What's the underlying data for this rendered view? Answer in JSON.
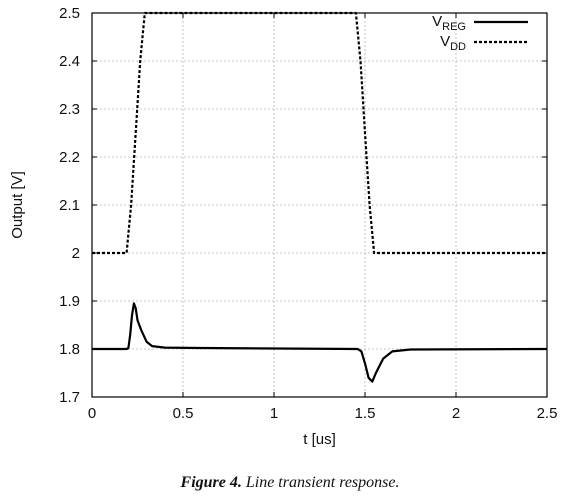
{
  "chart_data": {
    "type": "line",
    "xlabel": "t [us]",
    "ylabel": "Output [V]",
    "xlim": [
      0,
      2.5
    ],
    "ylim": [
      1.7,
      2.5
    ],
    "x_ticks": [
      "0",
      "0.5",
      "1",
      "1.5",
      "2",
      "2.5"
    ],
    "y_ticks": [
      "1.7",
      "1.8",
      "1.9",
      "2",
      "2.1",
      "2.2",
      "2.3",
      "2.4",
      "2.5"
    ],
    "x_tick_values": [
      0,
      0.5,
      1,
      1.5,
      2,
      2.5
    ],
    "y_tick_values": [
      1.7,
      1.8,
      1.9,
      2.0,
      2.1,
      2.2,
      2.3,
      2.4,
      2.5
    ],
    "grid": true,
    "legend_position": "top-right",
    "series": [
      {
        "name": "V_REG",
        "legend_main": "V",
        "legend_sub": "REG",
        "style": "solid",
        "color": "#000000",
        "points": [
          [
            0,
            1.8
          ],
          [
            0.19,
            1.8
          ],
          [
            0.2,
            1.802
          ],
          [
            0.21,
            1.83
          ],
          [
            0.22,
            1.87
          ],
          [
            0.23,
            1.895
          ],
          [
            0.24,
            1.885
          ],
          [
            0.25,
            1.86
          ],
          [
            0.27,
            1.84
          ],
          [
            0.3,
            1.815
          ],
          [
            0.33,
            1.806
          ],
          [
            0.4,
            1.803
          ],
          [
            0.6,
            1.802
          ],
          [
            1.0,
            1.801
          ],
          [
            1.46,
            1.8
          ],
          [
            1.48,
            1.795
          ],
          [
            1.5,
            1.77
          ],
          [
            1.52,
            1.74
          ],
          [
            1.54,
            1.732
          ],
          [
            1.56,
            1.75
          ],
          [
            1.6,
            1.78
          ],
          [
            1.65,
            1.795
          ],
          [
            1.75,
            1.799
          ],
          [
            2.5,
            1.8
          ]
        ]
      },
      {
        "name": "V_DD",
        "legend_main": "V",
        "legend_sub": "DD",
        "style": "dashed",
        "color": "#000000",
        "points": [
          [
            0,
            2.0
          ],
          [
            0.19,
            2.0
          ],
          [
            0.215,
            2.1
          ],
          [
            0.24,
            2.25
          ],
          [
            0.265,
            2.4
          ],
          [
            0.29,
            2.5
          ],
          [
            1.45,
            2.5
          ],
          [
            1.475,
            2.4
          ],
          [
            1.5,
            2.25
          ],
          [
            1.525,
            2.1
          ],
          [
            1.55,
            2.0
          ],
          [
            2.5,
            2.0
          ]
        ]
      }
    ]
  },
  "caption": {
    "label": "Figure 4.",
    "text": "Line transient response."
  }
}
